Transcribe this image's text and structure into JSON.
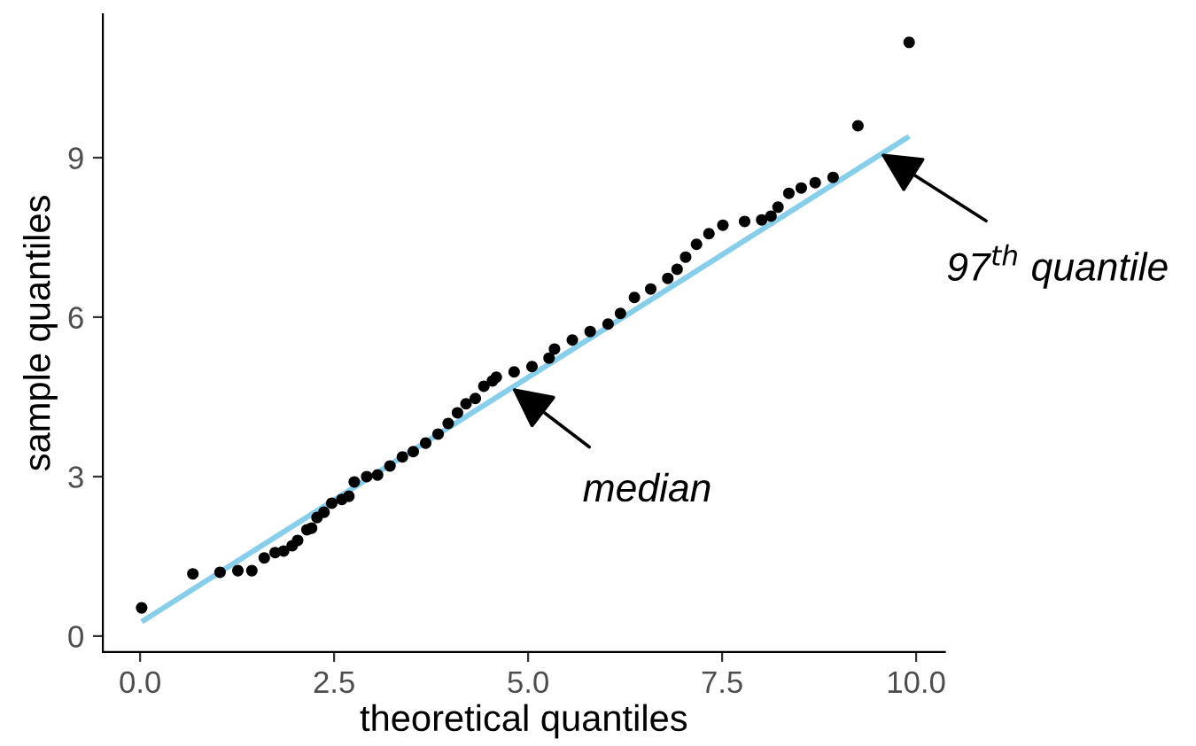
{
  "chart_data": {
    "type": "scatter",
    "xlabel": "theoretical quantiles",
    "ylabel": "sample quantiles",
    "xlim": [
      -0.48,
      10.37
    ],
    "ylim": [
      -0.3,
      11.7
    ],
    "xticks": [
      {
        "value": 0,
        "label": "0.0"
      },
      {
        "value": 2.5,
        "label": "2.5"
      },
      {
        "value": 5,
        "label": "5.0"
      },
      {
        "value": 7.5,
        "label": "7.5"
      },
      {
        "value": 10,
        "label": "10.0"
      }
    ],
    "yticks": [
      0,
      3,
      6,
      9
    ],
    "grid": false,
    "legend": false,
    "series": [
      {
        "marker": "circle",
        "color": "#000000",
        "x": [
          0.02,
          0.68,
          1.03,
          1.26,
          1.44,
          1.6,
          1.74,
          1.85,
          1.96,
          2.03,
          2.15,
          2.21,
          2.28,
          2.37,
          2.47,
          2.6,
          2.69,
          2.76,
          2.92,
          3.06,
          3.22,
          3.38,
          3.52,
          3.68,
          3.84,
          3.97,
          4.09,
          4.2,
          4.32,
          4.43,
          4.54,
          4.59,
          4.82,
          5.05,
          5.27,
          5.34,
          5.57,
          5.8,
          6.03,
          6.19,
          6.37,
          6.58,
          6.8,
          6.92,
          7.03,
          7.17,
          7.33,
          7.51,
          7.79,
          8.01,
          8.13,
          8.22,
          8.36,
          8.52,
          8.7,
          8.93,
          9.25,
          9.91
        ],
        "values": [
          0.53,
          1.17,
          1.2,
          1.23,
          1.23,
          1.47,
          1.57,
          1.6,
          1.7,
          1.8,
          2.0,
          2.03,
          2.23,
          2.33,
          2.5,
          2.57,
          2.63,
          2.9,
          3.0,
          3.03,
          3.2,
          3.37,
          3.47,
          3.63,
          3.8,
          4.0,
          4.2,
          4.37,
          4.47,
          4.7,
          4.8,
          4.87,
          4.97,
          5.07,
          5.23,
          5.4,
          5.57,
          5.73,
          5.87,
          6.07,
          6.37,
          6.53,
          6.73,
          6.9,
          7.13,
          7.37,
          7.57,
          7.73,
          7.8,
          7.83,
          7.9,
          8.07,
          8.33,
          8.43,
          8.53,
          8.63,
          9.6,
          11.17
        ]
      },
      {
        "type": "line",
        "color": "#87ceeb",
        "line_style": "solid",
        "x": [
          0.02,
          9.91
        ],
        "values": [
          0.27,
          9.4
        ]
      }
    ],
    "annotations": [
      {
        "text": "median",
        "x": 4.79,
        "y": 4.67
      },
      {
        "text": "97$^{th}$ quantile",
        "x": 9.54,
        "y": 9.08
      }
    ]
  }
}
